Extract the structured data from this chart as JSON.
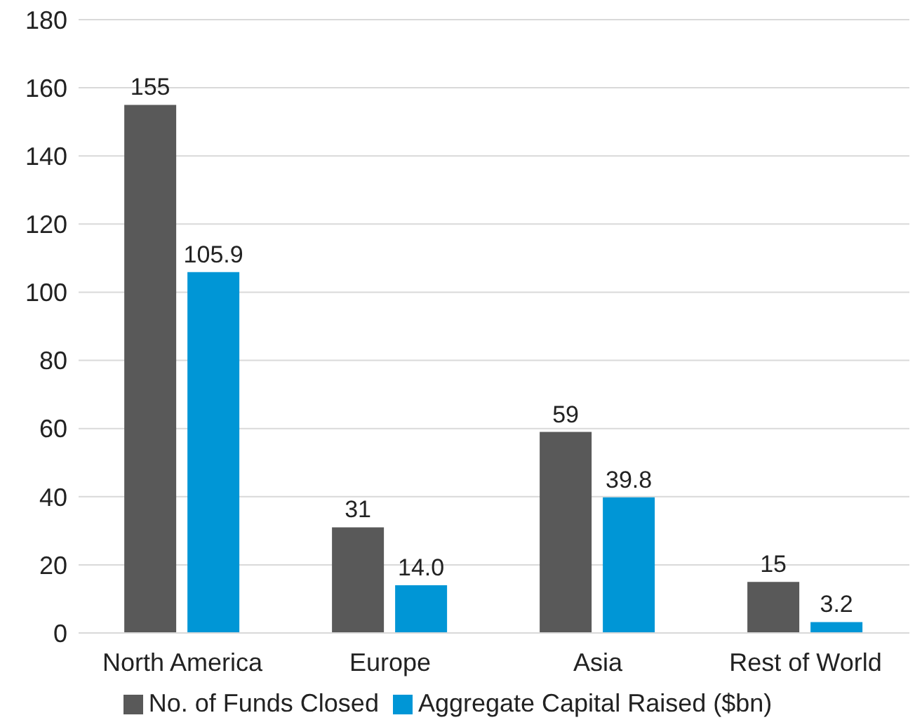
{
  "chart_data": {
    "type": "bar",
    "categories": [
      "North America",
      "Europe",
      "Asia",
      "Rest of World"
    ],
    "series": [
      {
        "name": "No. of Funds Closed",
        "color": "#595959",
        "values": [
          155,
          31,
          59,
          15
        ],
        "value_labels": [
          "155",
          "31",
          "59",
          "15"
        ]
      },
      {
        "name": "Aggregate Capital Raised ($bn)",
        "color": "#0096d6",
        "values": [
          105.9,
          14.0,
          39.8,
          3.2
        ],
        "value_labels": [
          "105.9",
          "14.0",
          "39.8",
          "3.2"
        ]
      }
    ],
    "ylim": [
      0,
      180
    ],
    "yticks": [
      0,
      20,
      40,
      60,
      80,
      100,
      120,
      140,
      160,
      180
    ],
    "grid": "y",
    "legend": "bottom"
  }
}
